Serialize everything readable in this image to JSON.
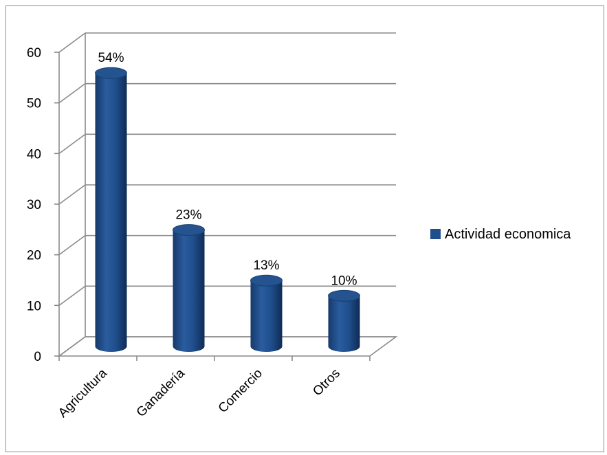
{
  "chart_data": {
    "type": "bar",
    "categories": [
      "Agricultura",
      "Ganadería",
      "Comercio",
      "Otros"
    ],
    "series": [
      {
        "name": "Actividad economica",
        "values": [
          54,
          23,
          13,
          10
        ],
        "data_labels": [
          "54%",
          "23%",
          "13%",
          "10%"
        ],
        "color": "#1f4e8c"
      }
    ],
    "ylim": [
      0,
      60
    ],
    "yticks": [
      0,
      10,
      20,
      30,
      40,
      50,
      60
    ],
    "grid": true,
    "legend": {
      "position": "right"
    },
    "style": "3d-cylinder"
  }
}
